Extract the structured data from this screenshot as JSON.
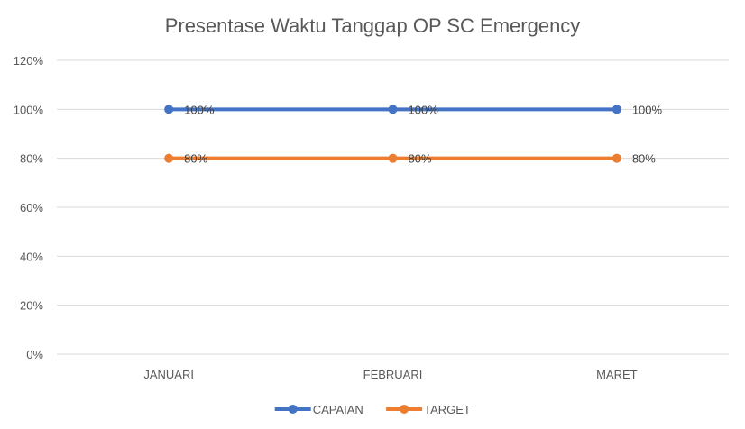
{
  "chart_data": {
    "type": "line",
    "title": "Presentase Waktu Tanggap OP SC Emergency",
    "xlabel": "",
    "ylabel": "",
    "categories": [
      "JANUARI",
      "FEBRUARI",
      "MARET"
    ],
    "ylim": [
      0,
      1.2
    ],
    "y_ticks": [
      "0%",
      "20%",
      "40%",
      "60%",
      "80%",
      "100%",
      "120%"
    ],
    "grid": true,
    "legend_position": "bottom",
    "series": [
      {
        "name": "CAPAIAN",
        "values": [
          1.0,
          1.0,
          1.0
        ],
        "labels": [
          "100%",
          "100%",
          "100%"
        ],
        "color": "#4472C4"
      },
      {
        "name": "TARGET",
        "values": [
          0.8,
          0.8,
          0.8
        ],
        "labels": [
          "80%",
          "80%",
          "80%"
        ],
        "color": "#ED7D31"
      }
    ]
  }
}
